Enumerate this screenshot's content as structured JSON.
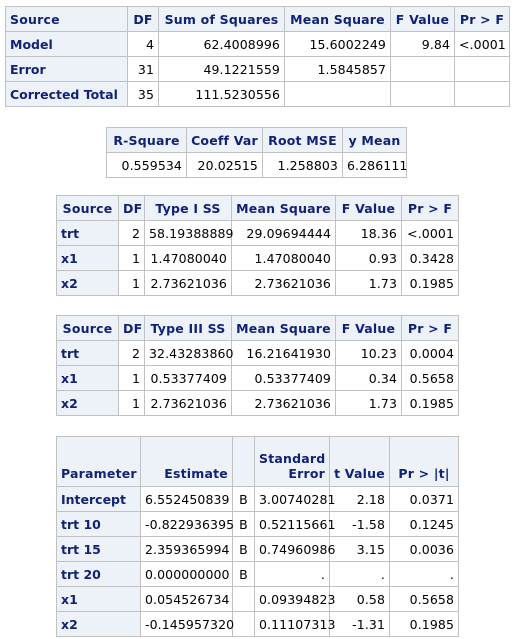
{
  "anova": {
    "headers": [
      "Source",
      "DF",
      "Sum of Squares",
      "Mean Square",
      "F Value",
      "Pr > F"
    ],
    "rows": [
      {
        "source": "Model",
        "df": "4",
        "ss": "62.4008996",
        "ms": "15.6002249",
        "f": "9.84",
        "p": "<.0001"
      },
      {
        "source": "Error",
        "df": "31",
        "ss": "49.1221559",
        "ms": "1.5845857",
        "f": "",
        "p": ""
      },
      {
        "source": "Corrected Total",
        "df": "35",
        "ss": "111.5230556",
        "ms": "",
        "f": "",
        "p": ""
      }
    ]
  },
  "fit": {
    "headers": [
      "R-Square",
      "Coeff Var",
      "Root MSE",
      "y Mean"
    ],
    "values": [
      "0.559534",
      "20.02515",
      "1.258803",
      "6.286111"
    ]
  },
  "type1": {
    "headers": [
      "Source",
      "DF",
      "Type I SS",
      "Mean Square",
      "F Value",
      "Pr > F"
    ],
    "rows": [
      {
        "source": "trt",
        "df": "2",
        "ss": "58.19388889",
        "ms": "29.09694444",
        "f": "18.36",
        "p": "<.0001"
      },
      {
        "source": "x1",
        "df": "1",
        "ss": "1.47080040",
        "ms": "1.47080040",
        "f": "0.93",
        "p": "0.3428"
      },
      {
        "source": "x2",
        "df": "1",
        "ss": "2.73621036",
        "ms": "2.73621036",
        "f": "1.73",
        "p": "0.1985"
      }
    ]
  },
  "type3": {
    "headers": [
      "Source",
      "DF",
      "Type III SS",
      "Mean Square",
      "F Value",
      "Pr > F"
    ],
    "rows": [
      {
        "source": "trt",
        "df": "2",
        "ss": "32.43283860",
        "ms": "16.21641930",
        "f": "10.23",
        "p": "0.0004"
      },
      {
        "source": "x1",
        "df": "1",
        "ss": "0.53377409",
        "ms": "0.53377409",
        "f": "0.34",
        "p": "0.5658"
      },
      {
        "source": "x2",
        "df": "1",
        "ss": "2.73621036",
        "ms": "2.73621036",
        "f": "1.73",
        "p": "0.1985"
      }
    ]
  },
  "params": {
    "headers": {
      "parameter": "Parameter",
      "estimate": "Estimate",
      "flag": "",
      "se_line1": "Standard",
      "se_line2": "Error",
      "t": "t Value",
      "p": "Pr > |t|"
    },
    "rows": [
      {
        "name": "Intercept",
        "estimate": "6.552450839",
        "flag": "B",
        "se": "3.00740281",
        "t": "2.18",
        "p": "0.0371"
      },
      {
        "name": "trt 10",
        "estimate": "-0.822936395",
        "flag": "B",
        "se": "0.52115661",
        "t": "-1.58",
        "p": "0.1245"
      },
      {
        "name": "trt 15",
        "estimate": "2.359365994",
        "flag": "B",
        "se": "0.74960986",
        "t": "3.15",
        "p": "0.0036"
      },
      {
        "name": "trt 20",
        "estimate": "0.000000000",
        "flag": "B",
        "se": ".",
        "t": ".",
        "p": "."
      },
      {
        "name": "x1",
        "estimate": "0.054526734",
        "flag": "",
        "se": "0.09394823",
        "t": "0.58",
        "p": "0.5658"
      },
      {
        "name": "x2",
        "estimate": "-0.145957320",
        "flag": "",
        "se": "0.11107313",
        "t": "-1.31",
        "p": "0.1985"
      }
    ]
  }
}
